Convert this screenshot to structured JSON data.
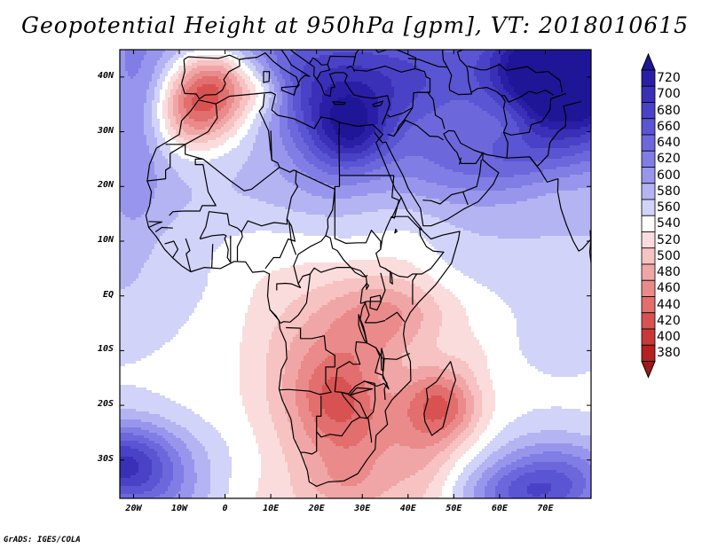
{
  "title": "Geopotential Height at 950hPa [gpm], VT: 2018010615",
  "credit": "GrADS: IGES/COLA",
  "axes": {
    "lon_min": -23,
    "lon_max": 80,
    "lat_min": -37,
    "lat_max": 45,
    "y_ticks": [
      {
        "label": "40N",
        "lat": 40
      },
      {
        "label": "30N",
        "lat": 30
      },
      {
        "label": "20N",
        "lat": 20
      },
      {
        "label": "10N",
        "lat": 10
      },
      {
        "label": "EQ",
        "lat": 0
      },
      {
        "label": "10S",
        "lat": -10
      },
      {
        "label": "20S",
        "lat": -20
      },
      {
        "label": "30S",
        "lat": -30
      }
    ],
    "x_ticks": [
      {
        "label": "20W",
        "lon": -20
      },
      {
        "label": "10W",
        "lon": -10
      },
      {
        "label": "0",
        "lon": 0
      },
      {
        "label": "10E",
        "lon": 10
      },
      {
        "label": "20E",
        "lon": 20
      },
      {
        "label": "30E",
        "lon": 30
      },
      {
        "label": "40E",
        "lon": 40
      },
      {
        "label": "50E",
        "lon": 50
      },
      {
        "label": "60E",
        "lon": 60
      },
      {
        "label": "70E",
        "lon": 70
      }
    ]
  },
  "colorbar": {
    "levels": [
      {
        "label": "720",
        "color": "#2b1ea6"
      },
      {
        "label": "700",
        "color": "#3a30b8"
      },
      {
        "label": "680",
        "color": "#4a42c6"
      },
      {
        "label": "660",
        "color": "#5a55d2"
      },
      {
        "label": "640",
        "color": "#6c68dc"
      },
      {
        "label": "620",
        "color": "#807ee4"
      },
      {
        "label": "600",
        "color": "#9896ec"
      },
      {
        "label": "580",
        "color": "#b4b4f2"
      },
      {
        "label": "560",
        "color": "#d2d3f8"
      },
      {
        "label": "540",
        "color": "#ffffff"
      },
      {
        "label": "520",
        "color": "#fbdcdc"
      },
      {
        "label": "500",
        "color": "#f6c2c2"
      },
      {
        "label": "480",
        "color": "#f0a6a6"
      },
      {
        "label": "460",
        "color": "#ea8a8a"
      },
      {
        "label": "440",
        "color": "#e26e6e"
      },
      {
        "label": "420",
        "color": "#d95252"
      },
      {
        "label": "400",
        "color": "#c93838"
      },
      {
        "label": "380",
        "color": "#b52020"
      }
    ],
    "top_arrow_color": "#1e1696",
    "bottom_arrow_color": "#a01818"
  },
  "chart_data": {
    "type": "heatmap",
    "title": "Geopotential Height at 950hPa [gpm], VT: 2018010615",
    "variable": "Geopotential height at 950 hPa",
    "units": "gpm",
    "valid_time": "2018010615",
    "lon_range": [
      -23,
      80
    ],
    "lat_range": [
      -37,
      45
    ],
    "levels": [
      380,
      400,
      420,
      440,
      460,
      480,
      500,
      520,
      540,
      560,
      580,
      600,
      620,
      640,
      660,
      680,
      700,
      720
    ],
    "features": [
      {
        "name": "Iberia / NW Africa low",
        "lon": -2,
        "lat": 39,
        "value": 400
      },
      {
        "name": "Madagascar low",
        "lon": 47,
        "lat": -20,
        "value": 420
      },
      {
        "name": "Southern Africa low",
        "lon": 25,
        "lat": -25,
        "value": 460
      },
      {
        "name": "Central Africa trough",
        "lon": 25,
        "lat": -5,
        "value": 500
      },
      {
        "name": "Central Asia high",
        "lon": 76,
        "lat": 40,
        "value": 680
      },
      {
        "name": "Eastern Mediterranean high",
        "lon": 28,
        "lat": 34,
        "value": 620
      },
      {
        "name": "South Atlantic high",
        "lon": -18,
        "lat": -30,
        "value": 640
      },
      {
        "name": "South Indian Ocean high",
        "lon": 75,
        "lat": -33,
        "value": 640
      }
    ]
  }
}
